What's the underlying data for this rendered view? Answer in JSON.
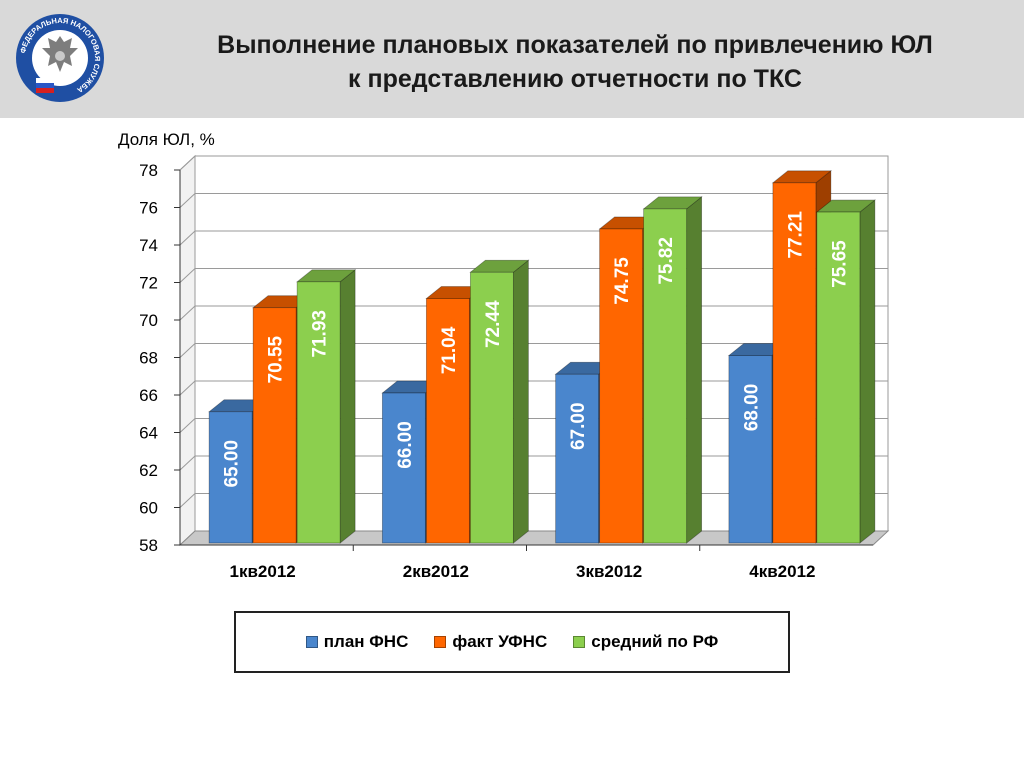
{
  "header": {
    "title_line1": "Выполнение плановых показателей по привлечению ЮЛ",
    "title_line2": "к представлению отчетности по ТКС",
    "logo": {
      "ring_text": "ФЕДЕРАЛЬНАЯ НАЛОГОВАЯ СЛУЖБА",
      "icon": "double-headed-eagle-emblem"
    }
  },
  "colors": {
    "plan": "#4a86cd",
    "fact": "#ff6600",
    "avg": "#8ccf4e"
  },
  "chart_data": {
    "type": "bar",
    "title": "Выполнение плановых показателей по привлечению ЮЛ к представлению отчетности по ТКС",
    "ylabel": "Доля ЮЛ, %",
    "xlabel": "",
    "ylim": [
      58,
      78
    ],
    "yticks": [
      58,
      60,
      62,
      64,
      66,
      68,
      70,
      72,
      74,
      76,
      78
    ],
    "grid": true,
    "legend_position": "bottom",
    "categories": [
      "1кв2012",
      "2кв2012",
      "3кв2012",
      "4кв2012"
    ],
    "series": [
      {
        "name": "план ФНС",
        "key": "plan",
        "values": [
          65.0,
          66.0,
          67.0,
          68.0
        ],
        "labels": [
          "65.00",
          "66.00",
          "67.00",
          "68.00"
        ]
      },
      {
        "name": "факт УФНС",
        "key": "fact",
        "values": [
          70.55,
          71.04,
          74.75,
          77.21
        ],
        "labels": [
          "70.55",
          "71.04",
          "74.75",
          "77.21"
        ]
      },
      {
        "name": "средний по РФ",
        "key": "avg",
        "values": [
          71.93,
          72.44,
          75.82,
          75.65
        ],
        "labels": [
          "71.93",
          "72.44",
          "75.82",
          "75.65"
        ]
      }
    ]
  }
}
